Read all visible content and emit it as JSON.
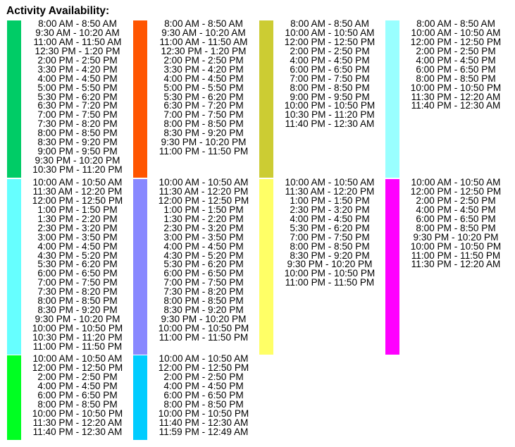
{
  "title": "Activity Availability:",
  "rows": [
    {
      "blocks": [
        {
          "color": "#00cc66",
          "times": [
            "8:00 AM - 8:50 AM",
            "9:30 AM - 10:20 AM",
            "11:00 AM - 11:50 AM",
            "12:30 PM - 1:20 PM",
            "2:00 PM - 2:50 PM",
            "3:30 PM - 4:20 PM",
            "4:00 PM - 4:50 PM",
            "5:00 PM - 5:50 PM",
            "5:30 PM - 6:20 PM",
            "6:30 PM - 7:20 PM",
            "7:00 PM - 7:50 PM",
            "7:30 PM - 8:20 PM",
            "8:00 PM - 8:50 PM",
            "8:30 PM - 9:20 PM",
            "9:00 PM - 9:50 PM",
            "9:30 PM - 10:20 PM",
            "10:30 PM - 11:20 PM"
          ]
        },
        {
          "color": "#ff5500",
          "times": [
            "8:00 AM - 8:50 AM",
            "9:30 AM - 10:20 AM",
            "11:00 AM - 11:50 AM",
            "12:30 PM - 1:20 PM",
            "2:00 PM - 2:50 PM",
            "3:30 PM - 4:20 PM",
            "4:00 PM - 4:50 PM",
            "5:00 PM - 5:50 PM",
            "5:30 PM - 6:20 PM",
            "6:30 PM - 7:20 PM",
            "7:00 PM - 7:50 PM",
            "8:00 PM - 8:50 PM",
            "8:30 PM - 9:20 PM",
            "9:30 PM - 10:20 PM",
            "11:00 PM - 11:50 PM"
          ]
        },
        {
          "color": "#cccc33",
          "times": [
            "8:00 AM - 8:50 AM",
            "10:00 AM - 10:50 AM",
            "12:00 PM - 12:50 PM",
            "2:00 PM - 2:50 PM",
            "4:00 PM - 4:50 PM",
            "6:00 PM - 6:50 PM",
            "7:00 PM - 7:50 PM",
            "8:00 PM - 8:50 PM",
            "9:00 PM - 9:50 PM",
            "10:00 PM - 10:50 PM",
            "10:30 PM - 11:20 PM",
            "11:40 PM - 12:30 AM"
          ]
        },
        {
          "color": "#99ffff",
          "times": [
            "8:00 AM - 8:50 AM",
            "10:00 AM - 10:50 AM",
            "12:00 PM - 12:50 PM",
            "2:00 PM - 2:50 PM",
            "4:00 PM - 4:50 PM",
            "6:00 PM - 6:50 PM",
            "8:00 PM - 8:50 PM",
            "10:00 PM - 10:50 PM",
            "11:30 PM - 12:20 AM",
            "11:40 PM - 12:30 AM"
          ]
        }
      ]
    },
    {
      "blocks": [
        {
          "color": "#66ffff",
          "times": [
            "10:00 AM - 10:50 AM",
            "11:30 AM - 12:20 PM",
            "12:00 PM - 12:50 PM",
            "1:00 PM - 1:50 PM",
            "1:30 PM - 2:20 PM",
            "2:30 PM - 3:20 PM",
            "3:00 PM - 3:50 PM",
            "4:00 PM - 4:50 PM",
            "4:30 PM - 5:20 PM",
            "5:30 PM - 6:20 PM",
            "6:00 PM - 6:50 PM",
            "7:00 PM - 7:50 PM",
            "7:30 PM - 8:20 PM",
            "8:00 PM - 8:50 PM",
            "8:30 PM - 9:20 PM",
            "9:30 PM - 10:20 PM",
            "10:00 PM - 10:50 PM",
            "10:30 PM - 11:20 PM",
            "11:00 PM - 11:50 PM"
          ]
        },
        {
          "color": "#8888ff",
          "times": [
            "10:00 AM - 10:50 AM",
            "11:30 AM - 12:20 PM",
            "12:00 PM - 12:50 PM",
            "1:00 PM - 1:50 PM",
            "1:30 PM - 2:20 PM",
            "2:30 PM - 3:20 PM",
            "3:00 PM - 3:50 PM",
            "4:00 PM - 4:50 PM",
            "4:30 PM - 5:20 PM",
            "5:30 PM - 6:20 PM",
            "6:00 PM - 6:50 PM",
            "7:00 PM - 7:50 PM",
            "7:30 PM - 8:20 PM",
            "8:00 PM - 8:50 PM",
            "8:30 PM - 9:20 PM",
            "9:30 PM - 10:20 PM",
            "10:00 PM - 10:50 PM",
            "11:00 PM - 11:50 PM"
          ]
        },
        {
          "color": "#ffff66",
          "times": [
            "10:00 AM - 10:50 AM",
            "11:30 AM - 12:20 PM",
            "1:00 PM - 1:50 PM",
            "2:30 PM - 3:20 PM",
            "4:00 PM - 4:50 PM",
            "5:30 PM - 6:20 PM",
            "7:00 PM - 7:50 PM",
            "8:00 PM - 8:50 PM",
            "8:30 PM - 9:20 PM",
            "9:30 PM - 10:20 PM",
            "10:00 PM - 10:50 PM",
            "11:00 PM - 11:50 PM"
          ]
        },
        {
          "color": "#ff00ff",
          "times": [
            "10:00 AM - 10:50 AM",
            "12:00 PM - 12:50 PM",
            "2:00 PM - 2:50 PM",
            "4:00 PM - 4:50 PM",
            "6:00 PM - 6:50 PM",
            "8:00 PM - 8:50 PM",
            "9:30 PM - 10:20 PM",
            "10:00 PM - 10:50 PM",
            "11:00 PM - 11:50 PM",
            "11:30 PM - 12:20 AM"
          ]
        }
      ]
    },
    {
      "blocks": [
        {
          "color": "#00ff22",
          "times": [
            "10:00 AM - 10:50 AM",
            "12:00 PM - 12:50 PM",
            "2:00 PM - 2:50 PM",
            "4:00 PM - 4:50 PM",
            "6:00 PM - 6:50 PM",
            "8:00 PM - 8:50 PM",
            "10:00 PM - 10:50 PM",
            "11:30 PM - 12:20 AM",
            "11:40 PM - 12:30 AM"
          ]
        },
        {
          "color": "#00ccff",
          "times": [
            "10:00 AM - 10:50 AM",
            "12:00 PM - 12:50 PM",
            "2:00 PM - 2:50 PM",
            "4:00 PM - 4:50 PM",
            "6:00 PM - 6:50 PM",
            "8:00 PM - 8:50 PM",
            "10:00 PM - 10:50 PM",
            "11:40 PM - 12:30 AM",
            "11:59 PM - 12:49 AM"
          ]
        }
      ]
    }
  ]
}
